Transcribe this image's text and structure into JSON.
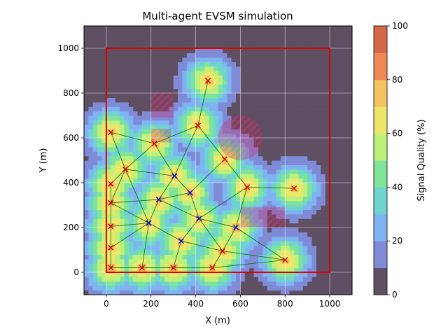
{
  "chart_data": {
    "type": "heatmap",
    "title": "Multi-agent EVSM simulation",
    "xlabel": "X (m)",
    "ylabel": "Y (m)",
    "xlim": [
      -100,
      1100
    ],
    "ylim": [
      -100,
      1100
    ],
    "xticks": [
      "0",
      "200",
      "400",
      "600",
      "800",
      "1000"
    ],
    "yticks": [
      "0",
      "200",
      "400",
      "600",
      "800",
      "1000"
    ],
    "grid": true,
    "boundary": {
      "x0": 0,
      "y0": 0,
      "x1": 1000,
      "y1": 1000,
      "color": "#e00000"
    },
    "colorbar": {
      "label": "Signal Quality (%)",
      "range": [
        0,
        100
      ],
      "ticks": [
        "0",
        "20",
        "40",
        "60",
        "80",
        "100"
      ],
      "levels": [
        0,
        10,
        20,
        30,
        40,
        50,
        60,
        70,
        80,
        90,
        100
      ],
      "colors": [
        "#5e4f62",
        "#7f8bd7",
        "#7fb3f2",
        "#6fd3d0",
        "#7fe39a",
        "#bdf07a",
        "#ece66b",
        "#f5c261",
        "#ef8a55",
        "#d56848"
      ]
    },
    "obstacles": [
      {
        "shape": "rect",
        "x0": 200,
        "y0": 690,
        "x1": 300,
        "y1": 800
      },
      {
        "shape": "rect",
        "x0": 200,
        "y0": 580,
        "x1": 290,
        "y1": 640
      },
      {
        "shape": "rect",
        "x0": 600,
        "y0": 200,
        "x1": 800,
        "y1": 290
      },
      {
        "shape": "circle",
        "cx": 600,
        "cy": 600,
        "r": 100
      }
    ],
    "boundary_agents": [
      [
        455,
        855
      ],
      [
        20,
        625
      ],
      [
        215,
        575
      ],
      [
        410,
        655
      ],
      [
        530,
        505
      ],
      [
        630,
        380
      ],
      [
        840,
        375
      ],
      [
        85,
        460
      ],
      [
        20,
        395
      ],
      [
        20,
        310
      ],
      [
        20,
        205
      ],
      [
        20,
        110
      ],
      [
        20,
        20
      ],
      [
        160,
        20
      ],
      [
        300,
        20
      ],
      [
        475,
        20
      ],
      [
        520,
        95
      ],
      [
        800,
        55
      ]
    ],
    "interior_agents": [
      [
        305,
        430
      ],
      [
        375,
        355
      ],
      [
        235,
        325
      ],
      [
        190,
        220
      ],
      [
        415,
        240
      ],
      [
        580,
        200
      ],
      [
        335,
        140
      ]
    ],
    "links": [
      [
        [
          20,
          625
        ],
        [
          215,
          575
        ]
      ],
      [
        [
          20,
          625
        ],
        [
          85,
          460
        ]
      ],
      [
        [
          215,
          575
        ],
        [
          410,
          655
        ]
      ],
      [
        [
          215,
          575
        ],
        [
          85,
          460
        ]
      ],
      [
        [
          215,
          575
        ],
        [
          305,
          430
        ]
      ],
      [
        [
          410,
          655
        ],
        [
          455,
          855
        ]
      ],
      [
        [
          410,
          655
        ],
        [
          305,
          430
        ]
      ],
      [
        [
          410,
          655
        ],
        [
          530,
          505
        ]
      ],
      [
        [
          530,
          505
        ],
        [
          375,
          355
        ]
      ],
      [
        [
          530,
          505
        ],
        [
          630,
          380
        ]
      ],
      [
        [
          630,
          380
        ],
        [
          840,
          375
        ]
      ],
      [
        [
          630,
          380
        ],
        [
          415,
          240
        ]
      ],
      [
        [
          630,
          380
        ],
        [
          580,
          200
        ]
      ],
      [
        [
          85,
          460
        ],
        [
          305,
          430
        ]
      ],
      [
        [
          85,
          460
        ],
        [
          20,
          395
        ]
      ],
      [
        [
          85,
          460
        ],
        [
          20,
          310
        ]
      ],
      [
        [
          85,
          460
        ],
        [
          190,
          220
        ]
      ],
      [
        [
          305,
          430
        ],
        [
          375,
          355
        ]
      ],
      [
        [
          305,
          430
        ],
        [
          235,
          325
        ]
      ],
      [
        [
          375,
          355
        ],
        [
          235,
          325
        ]
      ],
      [
        [
          375,
          355
        ],
        [
          415,
          240
        ]
      ],
      [
        [
          20,
          310
        ],
        [
          235,
          325
        ]
      ],
      [
        [
          20,
          310
        ],
        [
          190,
          220
        ]
      ],
      [
        [
          20,
          395
        ],
        [
          20,
          310
        ]
      ],
      [
        [
          235,
          325
        ],
        [
          190,
          220
        ]
      ],
      [
        [
          235,
          325
        ],
        [
          415,
          240
        ]
      ],
      [
        [
          20,
          205
        ],
        [
          190,
          220
        ]
      ],
      [
        [
          20,
          110
        ],
        [
          190,
          220
        ]
      ],
      [
        [
          20,
          205
        ],
        [
          20,
          110
        ]
      ],
      [
        [
          20,
          110
        ],
        [
          20,
          20
        ]
      ],
      [
        [
          190,
          220
        ],
        [
          160,
          20
        ]
      ],
      [
        [
          190,
          220
        ],
        [
          335,
          140
        ]
      ],
      [
        [
          415,
          240
        ],
        [
          335,
          140
        ]
      ],
      [
        [
          415,
          240
        ],
        [
          580,
          200
        ]
      ],
      [
        [
          415,
          240
        ],
        [
          520,
          95
        ]
      ],
      [
        [
          580,
          200
        ],
        [
          520,
          95
        ]
      ],
      [
        [
          580,
          200
        ],
        [
          800,
          55
        ]
      ],
      [
        [
          335,
          140
        ],
        [
          300,
          20
        ]
      ],
      [
        [
          335,
          140
        ],
        [
          520,
          95
        ]
      ],
      [
        [
          520,
          95
        ],
        [
          475,
          20
        ]
      ],
      [
        [
          520,
          95
        ],
        [
          800,
          55
        ]
      ],
      [
        [
          800,
          55
        ],
        [
          475,
          20
        ]
      ],
      [
        [
          20,
          20
        ],
        [
          160,
          20
        ]
      ],
      [
        [
          160,
          20
        ],
        [
          300,
          20
        ]
      ],
      [
        [
          300,
          20
        ],
        [
          475,
          20
        ]
      ],
      [
        [
          20,
          20
        ],
        [
          475,
          20
        ]
      ],
      [
        [
          20,
          205
        ],
        [
          20,
          310
        ]
      ]
    ]
  }
}
